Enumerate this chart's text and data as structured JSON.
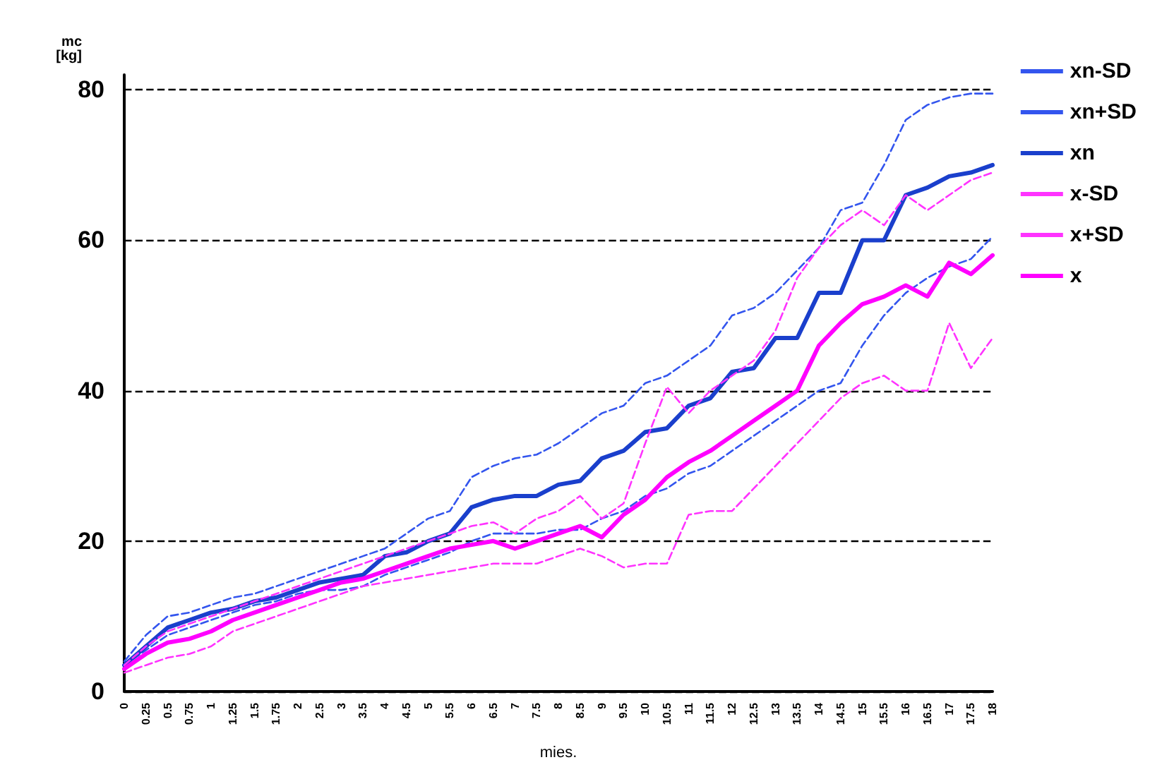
{
  "chart_data": {
    "type": "line",
    "xlabel": "mies.",
    "ylabel": "mc\n[kg]",
    "categories": [
      "0",
      "0.25",
      "0.5",
      "0.75",
      "1",
      "1.25",
      "1.5",
      "1.75",
      "2",
      "2.5",
      "3",
      "3.5",
      "4",
      "4.5",
      "5",
      "5.5",
      "6",
      "6.5",
      "7",
      "7.5",
      "8",
      "8.5",
      "9",
      "9.5",
      "10",
      "10.5",
      "11",
      "11.5",
      "12",
      "12.5",
      "13",
      "13.5",
      "14",
      "14.5",
      "15",
      "15.5",
      "16",
      "16.5",
      "17",
      "17.5",
      "18"
    ],
    "ylim": [
      0,
      82
    ],
    "yticks": [
      0,
      20,
      40,
      60,
      80
    ],
    "grid": "y",
    "legend": "right",
    "marker": "none",
    "series": [
      {
        "name": "xn-SD",
        "color": "#3355ee",
        "line_style": "dashed",
        "values": [
          3.5,
          5.5,
          7.5,
          8.5,
          9.5,
          10.5,
          11.5,
          12,
          13,
          13.5,
          13.5,
          14,
          15.5,
          16.5,
          17.5,
          18.5,
          20,
          21,
          21,
          21,
          21.5,
          21.5,
          23,
          24,
          26,
          27,
          29,
          30,
          32,
          34,
          36,
          38,
          40,
          41,
          46,
          50,
          53,
          55,
          56.5,
          57.5,
          60.5
        ]
      },
      {
        "name": "xn+SD",
        "color": "#3355ee",
        "line_style": "dashed",
        "values": [
          4,
          7.5,
          10,
          10.5,
          11.5,
          12.5,
          13,
          14,
          15,
          16,
          17,
          18,
          19,
          21,
          23,
          24,
          28.5,
          30,
          31,
          31.5,
          33,
          35,
          37,
          38,
          41,
          42,
          44,
          46,
          50,
          51,
          53,
          56,
          59,
          64,
          65,
          70,
          76,
          78,
          79,
          79.5,
          79.5
        ]
      },
      {
        "name": "xn",
        "color": "#1a3fcc",
        "line_style": "solid",
        "values": [
          3.5,
          6,
          8.5,
          9.5,
          10.5,
          11,
          12,
          12.5,
          13.5,
          14.5,
          15,
          15.5,
          18,
          18.5,
          20,
          21,
          24.5,
          25.5,
          26,
          26,
          27.5,
          28,
          31,
          32,
          34.5,
          35,
          38,
          39,
          42.5,
          43,
          47,
          47,
          53,
          53,
          60,
          60,
          66,
          67,
          68.5,
          69,
          70
        ]
      },
      {
        "name": "x-SD",
        "color": "#ff33ff",
        "line_style": "dashed",
        "values": [
          2.5,
          3.5,
          4.5,
          5,
          6,
          8,
          9,
          10,
          11,
          12,
          13,
          14,
          14.5,
          15,
          15.5,
          16,
          16.5,
          17,
          17,
          17,
          18,
          19,
          18,
          16.5,
          17,
          17,
          23.5,
          24,
          24,
          27,
          30,
          33,
          36,
          39,
          41,
          42,
          40,
          40,
          49,
          43,
          47
        ]
      },
      {
        "name": "x+SD",
        "color": "#ff33ff",
        "line_style": "dashed",
        "values": [
          3.5,
          6,
          8,
          9,
          10,
          11,
          12,
          13,
          14,
          15,
          16,
          17,
          18,
          19,
          20,
          21,
          22,
          22.5,
          21,
          23,
          24,
          26,
          23,
          25,
          33,
          40.5,
          37,
          40,
          42,
          44,
          48,
          55,
          59,
          62,
          64,
          62,
          66,
          64,
          66,
          68,
          69
        ]
      },
      {
        "name": "x",
        "color": "#ff00ff",
        "line_style": "solid",
        "values": [
          3,
          5,
          6.5,
          7,
          8,
          9.5,
          10.5,
          11.5,
          12.5,
          13.5,
          14.5,
          15,
          16,
          17,
          18,
          19,
          19.5,
          20,
          19,
          20,
          21,
          22,
          20.5,
          23.5,
          25.5,
          28.5,
          30.5,
          32,
          34,
          36,
          38,
          40,
          46,
          49,
          51.5,
          52.5,
          54,
          52.5,
          57,
          55.5,
          58
        ]
      }
    ]
  }
}
